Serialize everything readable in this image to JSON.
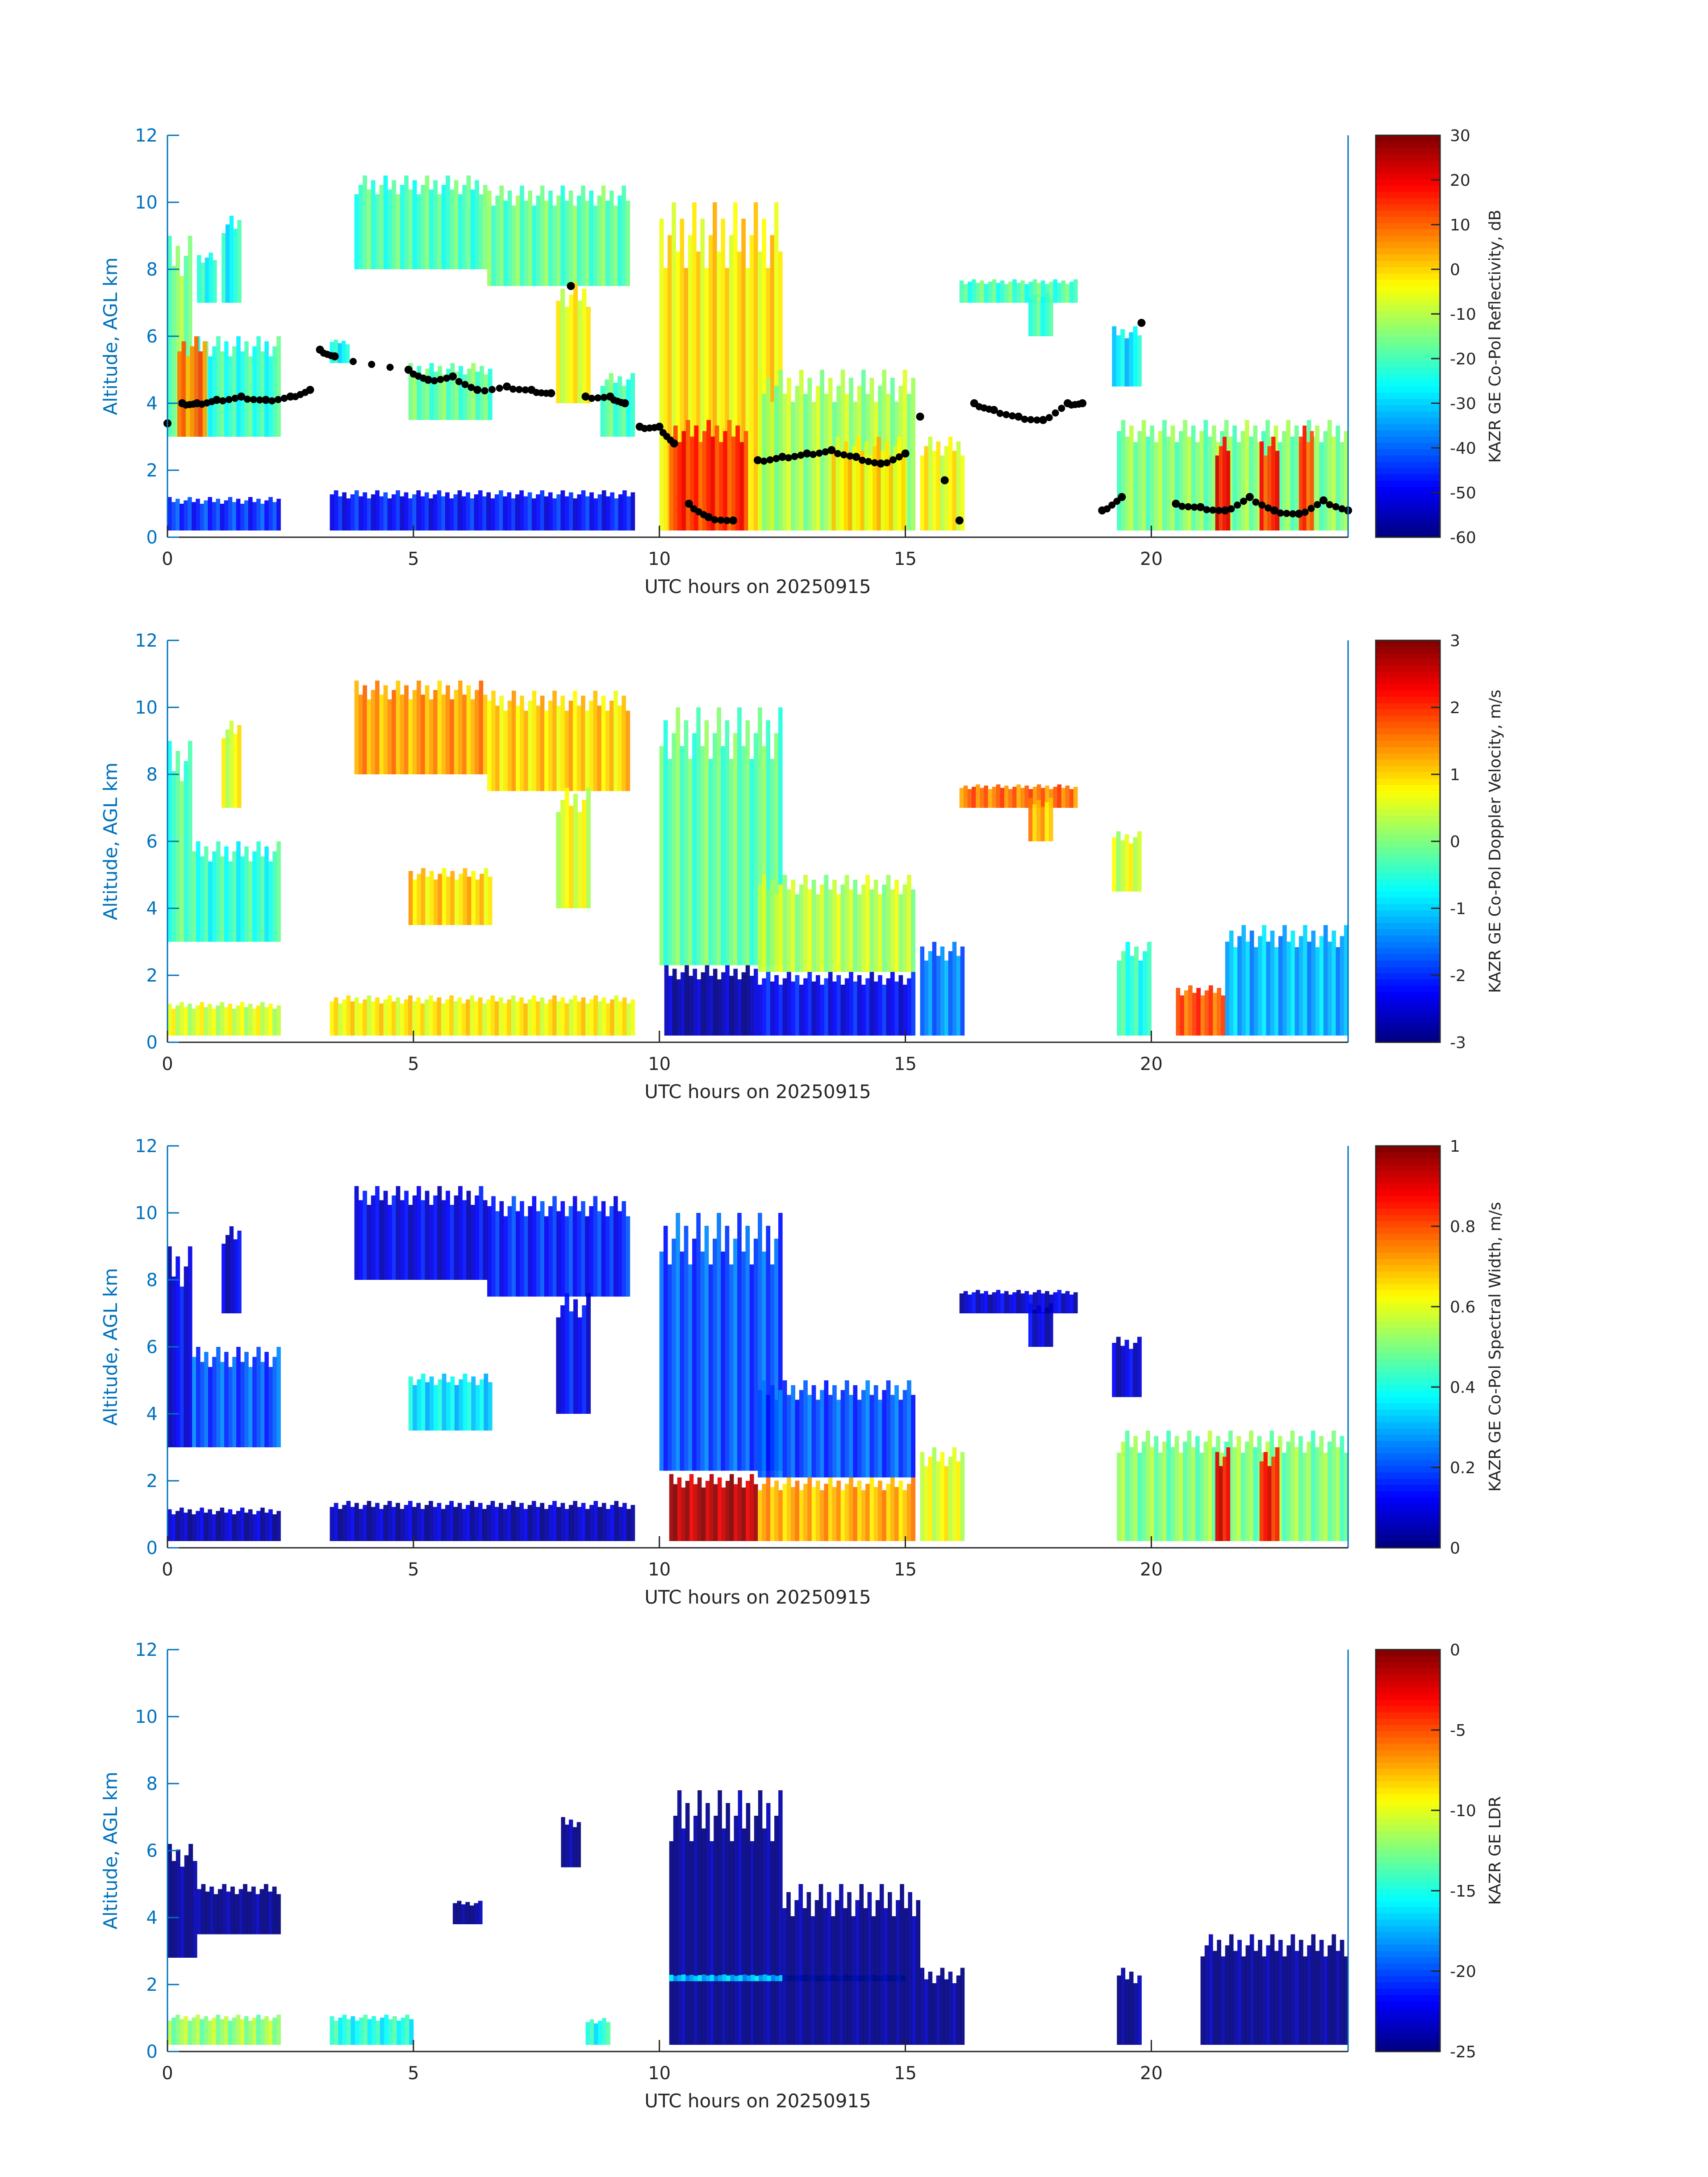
{
  "figure": {
    "date": "20250915"
  },
  "colors": {
    "axis_blue": "#0072BD",
    "axis_dark": "#262626",
    "marker": "#000000"
  },
  "chart_data": [
    {
      "type": "heatmap",
      "xlabel": "UTC hours on 20250915",
      "ylabel": "Altitude, AGL km",
      "xlim": [
        0,
        24
      ],
      "ylim": [
        0,
        12
      ],
      "xticks": [
        "0",
        "5",
        "10",
        "15",
        "20"
      ],
      "yticks": [
        "0",
        "2",
        "4",
        "6",
        "8",
        "10",
        "12"
      ],
      "colormap": "jet",
      "colorbar": {
        "label": "KAZR GE Co-Pol Reflectivity, dB",
        "range": [
          -60,
          30
        ],
        "ticks": [
          "30",
          "20",
          "10",
          "0",
          "-10",
          "-20",
          "-30",
          "-40",
          "-50",
          "-60"
        ]
      },
      "regions": [
        [
          0,
          0.5,
          3,
          9,
          -15
        ],
        [
          0.5,
          2.3,
          3,
          6,
          -22
        ],
        [
          1.1,
          1.5,
          7,
          9.6,
          -25
        ],
        [
          0.6,
          1.0,
          7,
          8.5,
          -25
        ],
        [
          0.2,
          0.8,
          3,
          6,
          8
        ],
        [
          0,
          2.3,
          0.2,
          1.2,
          -45
        ],
        [
          3.3,
          9.5,
          0.2,
          1.4,
          -48
        ],
        [
          3.8,
          6.5,
          8,
          10.8,
          -20
        ],
        [
          6.5,
          9.4,
          7.5,
          10.5,
          -18
        ],
        [
          7.9,
          8.6,
          4,
          7.6,
          -5
        ],
        [
          4.9,
          6.6,
          3.5,
          5.2,
          -18
        ],
        [
          3.3,
          3.7,
          5.2,
          5.9,
          -25
        ],
        [
          8.8,
          9.5,
          3,
          4.9,
          -20
        ],
        [
          10,
          12.5,
          0.2,
          10,
          -2
        ],
        [
          10.2,
          11.8,
          0.2,
          3.5,
          15
        ],
        [
          12,
          15.2,
          0.2,
          5,
          -12
        ],
        [
          13.5,
          15,
          0.2,
          3,
          -2
        ],
        [
          15.3,
          16.2,
          0.2,
          3,
          -5
        ],
        [
          16.1,
          18.5,
          7,
          7.7,
          -20
        ],
        [
          17.5,
          18,
          6,
          7.3,
          -22
        ],
        [
          19.2,
          19.8,
          4.5,
          6.3,
          -28
        ],
        [
          19.3,
          24,
          0.2,
          3.5,
          -15
        ],
        [
          21.3,
          21.6,
          0.2,
          3,
          18
        ],
        [
          22.2,
          22.6,
          0.2,
          3,
          15
        ],
        [
          23,
          23.3,
          0.2,
          3.5,
          12
        ]
      ],
      "cloud_base_points": {
        "x": [
          0,
          0.3,
          0.6,
          1,
          1.5,
          2,
          2.5,
          2.9,
          3.1,
          3.4,
          4.9,
          5.3,
          5.8,
          6.3,
          6.9,
          7.4,
          7.8,
          8.2,
          8.5,
          9,
          9.3,
          9.6,
          10,
          10.3,
          10.6,
          11,
          11.5,
          12,
          12.5,
          13,
          13.5,
          14,
          14.5,
          15,
          15.3,
          15.8,
          16.1,
          16.4,
          16.8,
          17.3,
          17.8,
          18.3,
          18.6,
          19,
          19.4,
          19.8,
          20.5,
          21,
          21.5,
          22,
          22.5,
          23,
          23.5,
          24
        ],
        "y": [
          3.4,
          4,
          4,
          4.1,
          4.2,
          4.1,
          4.2,
          4.4,
          5.6,
          5.4,
          5,
          4.7,
          4.8,
          4.4,
          4.5,
          4.4,
          4.3,
          7.5,
          4.2,
          4.2,
          4,
          3.3,
          3.3,
          2.8,
          1,
          0.6,
          0.5,
          2.3,
          2.4,
          2.5,
          2.6,
          2.4,
          2.2,
          2.5,
          3.6,
          1.7,
          0.5,
          4,
          3.8,
          3.6,
          3.5,
          4,
          4,
          0.8,
          1.2,
          6.4,
          1,
          0.9,
          0.8,
          1.2,
          0.8,
          0.7,
          1.1,
          0.8
        ]
      }
    },
    {
      "type": "heatmap",
      "xlabel": "UTC hours on 20250915",
      "ylabel": "Altitude, AGL km",
      "xlim": [
        0,
        24
      ],
      "ylim": [
        0,
        12
      ],
      "xticks": [
        "0",
        "5",
        "10",
        "15",
        "20"
      ],
      "yticks": [
        "0",
        "2",
        "4",
        "6",
        "8",
        "10",
        "12"
      ],
      "colormap": "jet",
      "colorbar": {
        "label": "KAZR GE Co-Pol Doppler Velocity, m/s",
        "range": [
          -3,
          3
        ],
        "ticks": [
          "3",
          "2",
          "1",
          "0",
          "-1",
          "-2",
          "-3"
        ]
      },
      "regions": [
        [
          0,
          0.5,
          3,
          9,
          -0.3
        ],
        [
          0.5,
          2.3,
          3,
          6,
          -0.5
        ],
        [
          1.1,
          1.5,
          7,
          9.6,
          0.6
        ],
        [
          0,
          2.3,
          0.2,
          1.2,
          0.5
        ],
        [
          3.3,
          9.5,
          0.2,
          1.4,
          0.8
        ],
        [
          3.8,
          6.5,
          8,
          10.8,
          1.3
        ],
        [
          6.5,
          9.4,
          7.5,
          10.5,
          1.0
        ],
        [
          7.9,
          8.6,
          4,
          7.6,
          0.6
        ],
        [
          4.9,
          6.6,
          3.5,
          5.2,
          1.0
        ],
        [
          10,
          12.5,
          2.3,
          10,
          -0.2
        ],
        [
          10.1,
          12,
          0.2,
          2.3,
          -2.8
        ],
        [
          12,
          15.2,
          2.1,
          5,
          0.3
        ],
        [
          12,
          15.2,
          0.2,
          2.1,
          -2.3
        ],
        [
          15.3,
          16.2,
          0.2,
          3,
          -1.5
        ],
        [
          16.1,
          18.5,
          7,
          7.7,
          1.6
        ],
        [
          17.5,
          18,
          6,
          7.3,
          1.2
        ],
        [
          19.2,
          19.8,
          4.5,
          6.3,
          0.5
        ],
        [
          19.3,
          20,
          0.2,
          3,
          -0.5
        ],
        [
          20.5,
          21.5,
          0.2,
          1.7,
          1.8
        ],
        [
          21.5,
          24,
          0.2,
          3.5,
          -1.2
        ]
      ]
    },
    {
      "type": "heatmap",
      "xlabel": "UTC hours on 20250915",
      "ylabel": "Altitude, AGL km",
      "xlim": [
        0,
        24
      ],
      "ylim": [
        0,
        12
      ],
      "xticks": [
        "0",
        "5",
        "10",
        "15",
        "20"
      ],
      "yticks": [
        "0",
        "2",
        "4",
        "6",
        "8",
        "10",
        "12"
      ],
      "colormap": "jet",
      "colorbar": {
        "label": "KAZR GE Co-Pol Spectral Width, m/s",
        "range": [
          0,
          1
        ],
        "ticks": [
          "1",
          "0.8",
          "0.6",
          "0.4",
          "0.2",
          "0"
        ]
      },
      "regions": [
        [
          0,
          0.5,
          3,
          9,
          0.1
        ],
        [
          0.5,
          2.3,
          3,
          6,
          0.2
        ],
        [
          1.1,
          1.5,
          7,
          9.6,
          0.08
        ],
        [
          0,
          2.3,
          0.2,
          1.2,
          0.05
        ],
        [
          3.3,
          9.5,
          0.2,
          1.4,
          0.05
        ],
        [
          3.8,
          6.5,
          8,
          10.8,
          0.1
        ],
        [
          6.5,
          9.4,
          7.5,
          10.5,
          0.15
        ],
        [
          7.9,
          8.6,
          4,
          7.6,
          0.12
        ],
        [
          4.9,
          6.6,
          3.5,
          5.2,
          0.35
        ],
        [
          10,
          12.5,
          2.3,
          10,
          0.2
        ],
        [
          10.2,
          12,
          0.2,
          2.2,
          0.95
        ],
        [
          12,
          15.2,
          2.1,
          5,
          0.2
        ],
        [
          12,
          15.2,
          0.2,
          2.1,
          0.7
        ],
        [
          15.3,
          16.2,
          0.2,
          3,
          0.6
        ],
        [
          16.1,
          18.5,
          7,
          7.7,
          0.08
        ],
        [
          17.5,
          18,
          6,
          7.3,
          0.08
        ],
        [
          19.2,
          19.8,
          4.5,
          6.3,
          0.08
        ],
        [
          19.3,
          24,
          0.2,
          3.5,
          0.5
        ],
        [
          21.3,
          21.6,
          0.2,
          3,
          0.9
        ],
        [
          22.2,
          22.6,
          0.2,
          3,
          0.85
        ]
      ]
    },
    {
      "type": "heatmap",
      "xlabel": "UTC hours on 20250915",
      "ylabel": "Altitude, AGL km",
      "xlim": [
        0,
        24
      ],
      "ylim": [
        0,
        12
      ],
      "xticks": [
        "0",
        "5",
        "10",
        "15",
        "20"
      ],
      "yticks": [
        "0",
        "2",
        "4",
        "6",
        "8",
        "10",
        "12"
      ],
      "colormap": "jet",
      "colorbar": {
        "label": "KAZR GE LDR",
        "range": [
          -25,
          0
        ],
        "ticks": [
          "0",
          "-5",
          "-10",
          "-15",
          "-20",
          "-25"
        ]
      },
      "regions": [
        [
          0,
          0.6,
          2.8,
          6.2,
          -25
        ],
        [
          0.6,
          2.3,
          3.5,
          5,
          -25
        ],
        [
          0,
          2.3,
          0.2,
          1.1,
          -12
        ],
        [
          3.3,
          5,
          0.2,
          1.1,
          -15
        ],
        [
          8.5,
          9,
          0.2,
          1,
          -15
        ],
        [
          8,
          8.4,
          5.5,
          7,
          -25
        ],
        [
          5.8,
          6.4,
          3.8,
          4.5,
          -25
        ],
        [
          10.2,
          12.5,
          0.2,
          7.8,
          -25
        ],
        [
          10.2,
          15,
          2.1,
          2.3,
          -17
        ],
        [
          12.5,
          15.3,
          0.2,
          5,
          -25
        ],
        [
          15.3,
          16.2,
          0.2,
          2.5,
          -25
        ],
        [
          19.3,
          19.8,
          0.2,
          2.5,
          -25
        ],
        [
          21,
          24,
          0.2,
          3.5,
          -25
        ]
      ]
    }
  ]
}
